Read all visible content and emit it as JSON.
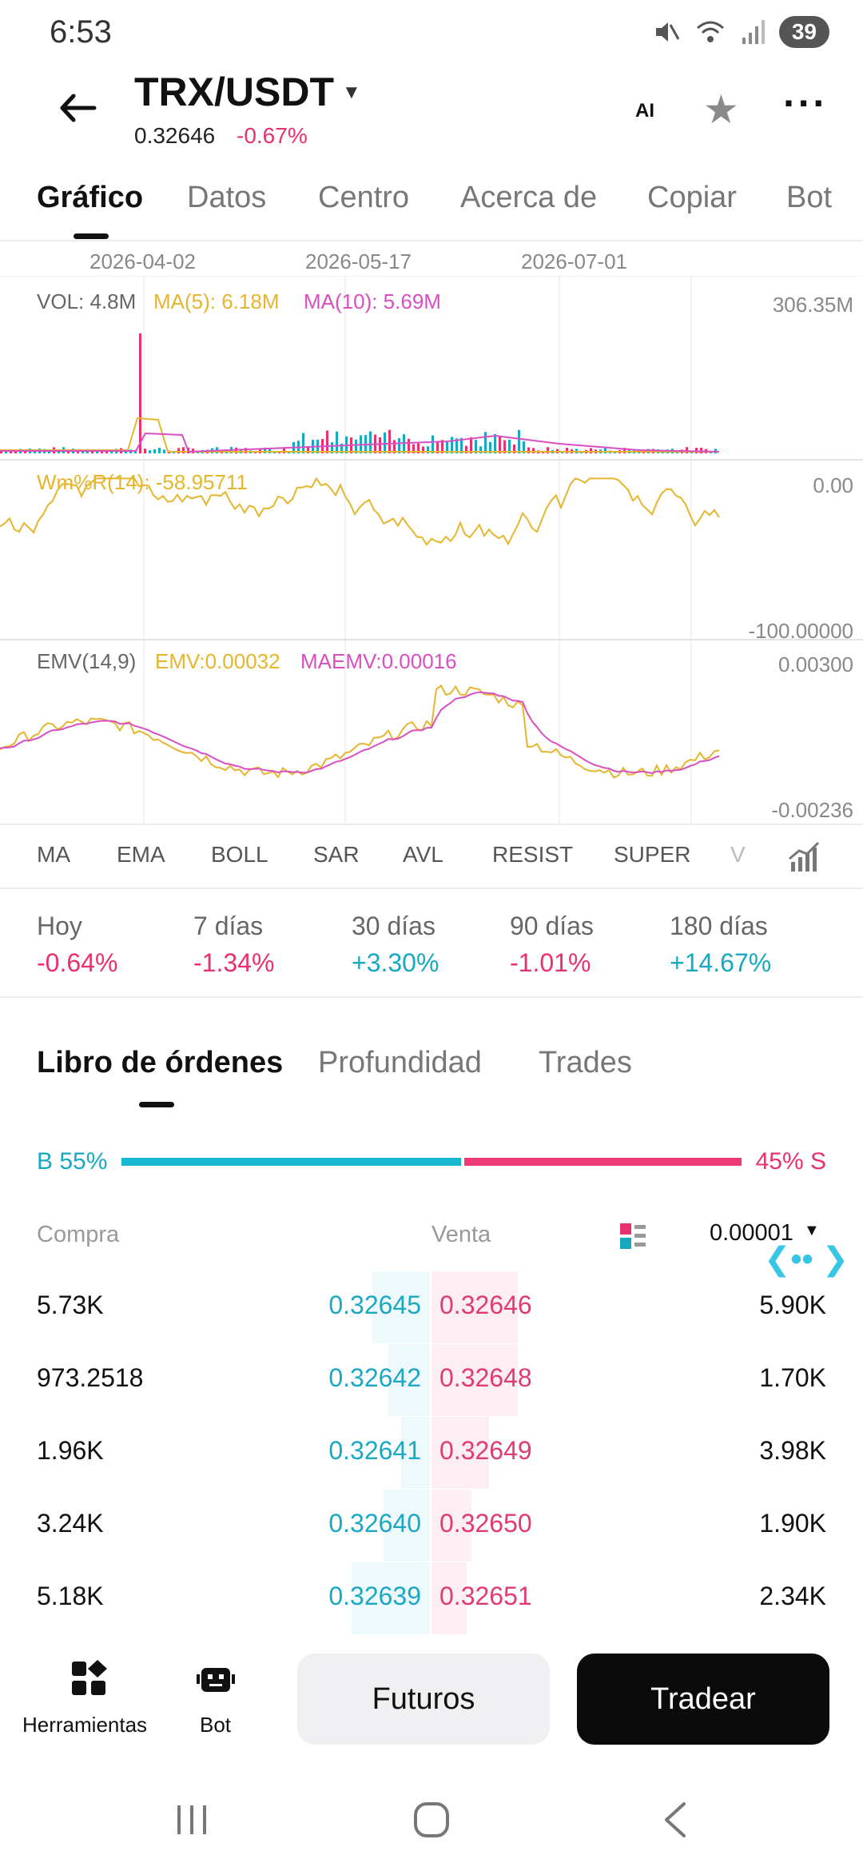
{
  "status": {
    "time": "6:53",
    "battery": "39"
  },
  "header": {
    "pair": "TRX/USDT",
    "price": "0.32646",
    "change": "-0.67%",
    "ai_label": "AI"
  },
  "tabs": [
    "Gráfico",
    "Datos",
    "Centro",
    "Acerca de",
    "Copiar",
    "Bot"
  ],
  "chart": {
    "dates": [
      "2026-04-02",
      "2026-05-17",
      "2026-07-01"
    ],
    "vol": {
      "label": "VOL: 4.8M",
      "ma5": "MA(5): 6.18M",
      "ma10": "MA(10): 5.69M",
      "max": "306.35M"
    },
    "wmr": {
      "label": "Wm%R(14): -58.95711",
      "top": "0.00",
      "bottom": "-100.00000"
    },
    "emv": {
      "label": "EMV(14,9)",
      "emv": "EMV:0.00032",
      "maemv": "MAEMV:0.00016",
      "top": "0.00300",
      "bottom": "-0.00236"
    }
  },
  "indicator_tabs": [
    "MA",
    "EMA",
    "BOLL",
    "SAR",
    "AVL",
    "RESIST",
    "SUPER",
    "V"
  ],
  "performance": [
    {
      "label": "Hoy",
      "value": "-0.64%"
    },
    {
      "label": "7 días",
      "value": "-1.34%"
    },
    {
      "label": "30 días",
      "value": "+3.30%"
    },
    {
      "label": "90 días",
      "value": "-1.01%"
    },
    {
      "label": "180 días",
      "value": "+14.67%"
    }
  ],
  "orderbook": {
    "tabs": [
      "Libro de órdenes",
      "Profundidad",
      "Trades"
    ],
    "buy_ratio": "B 55%",
    "sell_ratio": "45% S",
    "buy_fraction": 0.55,
    "headers": {
      "buy": "Compra",
      "sell": "Venta"
    },
    "precision": "0.00001",
    "rows": [
      {
        "bid_amount": "5.73K",
        "bid": "0.32645",
        "ask": "0.32646",
        "ask_amount": "5.90K"
      },
      {
        "bid_amount": "973.2518",
        "bid": "0.32642",
        "ask": "0.32648",
        "ask_amount": "1.70K"
      },
      {
        "bid_amount": "1.96K",
        "bid": "0.32641",
        "ask": "0.32649",
        "ask_amount": "3.98K"
      },
      {
        "bid_amount": "3.24K",
        "bid": "0.32640",
        "ask": "0.32650",
        "ask_amount": "1.90K"
      },
      {
        "bid_amount": "5.18K",
        "bid": "0.32639",
        "ask": "0.32651",
        "ask_amount": "2.34K"
      }
    ]
  },
  "bottom": {
    "tools": "Herramientas",
    "bot": "Bot",
    "futures": "Futuros",
    "trade": "Tradear"
  },
  "colors": {
    "up": "#17a8c2",
    "down": "#e8316d",
    "ma5": "#e6b52e",
    "ma10": "#d94fc2"
  }
}
